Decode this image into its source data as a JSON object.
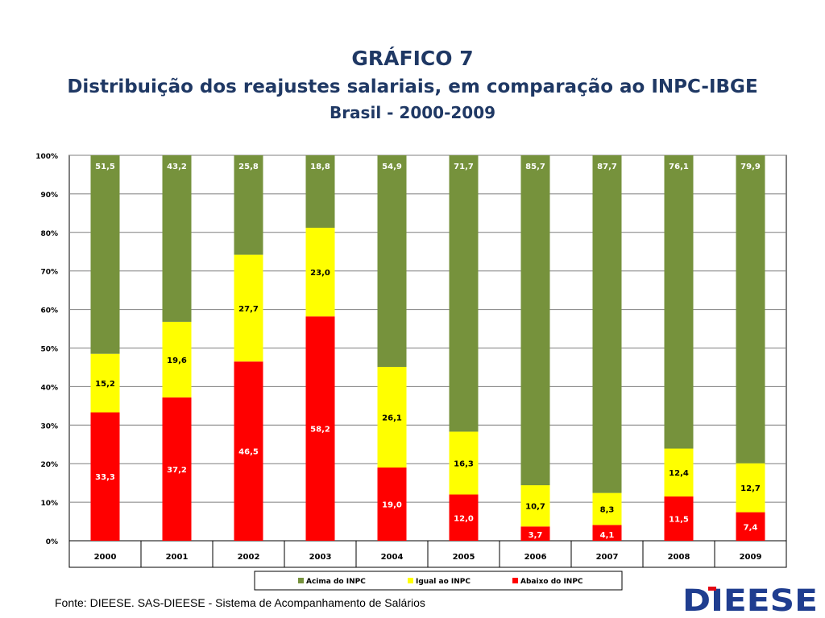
{
  "header": {
    "title": "GRÁFICO 7",
    "subtitle": "Distribuição dos reajustes salariais, em comparação ao INPC-IBGE",
    "region": "Brasil - 2000-2009"
  },
  "footer": {
    "source": "Fonte: DIEESE. SAS-DIEESE - Sistema de Acompanhamento de Salários",
    "logo_text": "DIEESE"
  },
  "chart_data": {
    "type": "bar",
    "stacked": true,
    "percent": true,
    "categories": [
      "2000",
      "2001",
      "2002",
      "2003",
      "2004",
      "2005",
      "2006",
      "2007",
      "2008",
      "2009"
    ],
    "series": [
      {
        "name": "Abaixo do INPC",
        "color": "#ff0000",
        "values": [
          33.3,
          37.2,
          46.5,
          58.2,
          19.0,
          12.0,
          3.7,
          4.1,
          11.5,
          7.4
        ],
        "labels": [
          "33,3",
          "37,2",
          "46,5",
          "58,2",
          "19,0",
          "12,0",
          "3,7",
          "4,1",
          "11,5",
          "7,4"
        ]
      },
      {
        "name": "Igual ao INPC",
        "color": "#ffff00",
        "values": [
          15.2,
          19.6,
          27.7,
          23.0,
          26.1,
          16.3,
          10.7,
          8.3,
          12.4,
          12.7
        ],
        "labels": [
          "15,2",
          "19,6",
          "27,7",
          "23,0",
          "26,1",
          "16,3",
          "10,7",
          "8,3",
          "12,4",
          "12,7"
        ]
      },
      {
        "name": "Acima do INPC",
        "color": "#76923c",
        "values": [
          51.5,
          43.2,
          25.8,
          18.8,
          54.9,
          71.7,
          85.7,
          87.7,
          76.1,
          79.9
        ],
        "labels": [
          "51,5",
          "43,2",
          "25,8",
          "18,8",
          "54,9",
          "71,7",
          "85,7",
          "87,7",
          "76,1",
          "79,9"
        ]
      }
    ],
    "legend_order": [
      "Acima do INPC",
      "Igual ao INPC",
      "Abaixo do INPC"
    ],
    "y_ticks": [
      "0%",
      "10%",
      "20%",
      "30%",
      "40%",
      "50%",
      "60%",
      "70%",
      "80%",
      "90%",
      "100%"
    ],
    "ylim": [
      0,
      100
    ],
    "grid": true,
    "legend_position": "bottom"
  }
}
